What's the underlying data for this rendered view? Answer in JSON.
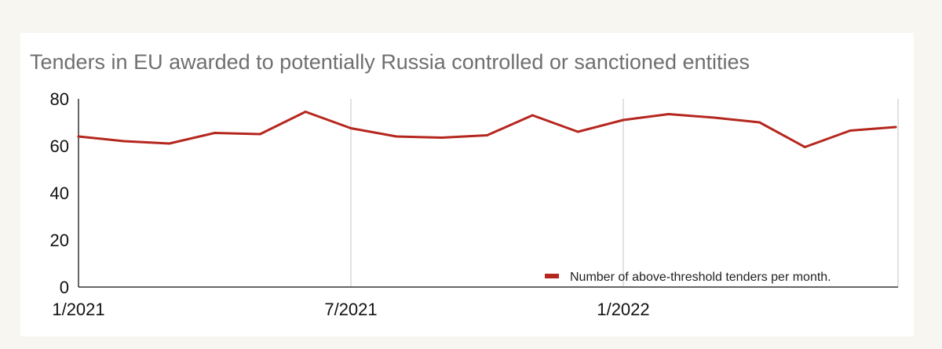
{
  "chart_data": {
    "type": "line",
    "title": "Tenders in EU awarded to potentially Russia controlled or sanctioned entities",
    "xlabel": "",
    "ylabel": "",
    "ylim": [
      0,
      80
    ],
    "yticks": [
      "0",
      "20",
      "40",
      "60",
      "80"
    ],
    "xtick_labels": [
      "1/2021",
      "7/2021",
      "1/2022"
    ],
    "x": [
      "1/2021",
      "2/2021",
      "3/2021",
      "4/2021",
      "5/2021",
      "6/2021",
      "7/2021",
      "8/2021",
      "9/2021",
      "10/2021",
      "11/2021",
      "12/2021",
      "1/2022",
      "2/2022",
      "3/2022",
      "4/2022",
      "5/2022",
      "6/2022",
      "7/2022"
    ],
    "series": [
      {
        "name": "Number of above-threshold tenders per month.",
        "color": "#b5271e",
        "values": [
          64,
          62,
          61,
          65.5,
          65,
          74.5,
          67.5,
          64,
          63.5,
          64.5,
          73,
          66,
          71,
          73.5,
          72,
          70,
          59.5,
          66.5,
          68
        ]
      }
    ],
    "legend_position": "bottom-right",
    "grid": "vertical at x ticks"
  }
}
